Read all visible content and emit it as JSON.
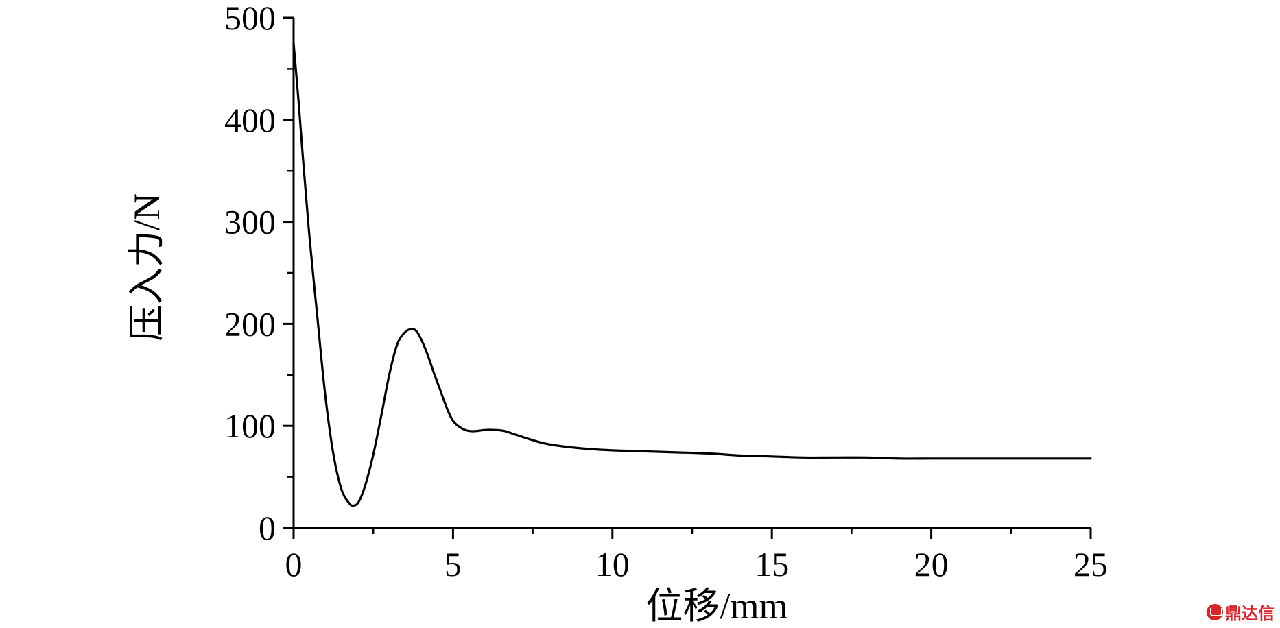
{
  "chart_data": {
    "type": "line",
    "xlabel": "位移/mm",
    "ylabel": "压入力/N",
    "xlim": [
      0,
      25
    ],
    "ylim": [
      0,
      500
    ],
    "x_ticks": [
      "0",
      "5",
      "10",
      "15",
      "20",
      "25"
    ],
    "y_ticks": [
      "0",
      "100",
      "200",
      "300",
      "400",
      "500"
    ],
    "grid": false,
    "series": [
      {
        "x": [
          0,
          0.15,
          0.3,
          0.5,
          0.75,
          1.0,
          1.25,
          1.5,
          1.75,
          1.9,
          2.05,
          2.25,
          2.5,
          2.75,
          3.0,
          3.25,
          3.5,
          3.7,
          3.85,
          4.0,
          4.2,
          4.4,
          4.6,
          4.8,
          5.0,
          5.25,
          5.5,
          5.75,
          6.0,
          6.3,
          6.6,
          7.0,
          7.5,
          8.0,
          9.0,
          10.0,
          11.0,
          12.0,
          13.0,
          14.0,
          15.0,
          16.0,
          17.0,
          18.0,
          19.0,
          20.0,
          21.0,
          22.0,
          23.0,
          24.0,
          25.0
        ],
        "y": [
          475,
          420,
          360,
          285,
          205,
          128,
          72,
          38,
          24,
          22,
          26,
          42,
          72,
          110,
          150,
          180,
          192,
          195,
          193,
          185,
          170,
          152,
          135,
          118,
          105,
          98,
          95,
          95,
          96,
          96,
          95,
          91,
          86,
          82,
          78,
          76,
          75,
          74,
          73,
          71,
          70,
          69,
          69,
          69,
          68,
          68,
          68,
          68,
          68,
          68,
          68
        ]
      }
    ]
  },
  "watermark": {
    "text": "鼎达信",
    "color": "#d9262b"
  }
}
